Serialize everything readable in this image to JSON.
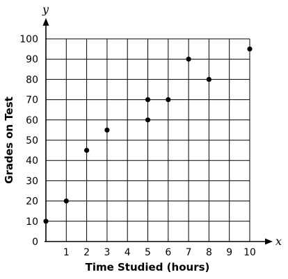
{
  "chart_data": {
    "type": "scatter",
    "xlabel": "Time Studied (hours)",
    "ylabel": "Grades on Test",
    "x_axis_var": "x",
    "y_axis_var": "y",
    "xlim": [
      0,
      10
    ],
    "ylim": [
      0,
      100
    ],
    "x_ticks": [
      "1",
      "2",
      "3",
      "4",
      "5",
      "6",
      "7",
      "8",
      "9",
      "10"
    ],
    "y_ticks": [
      "0",
      "10",
      "20",
      "30",
      "40",
      "50",
      "60",
      "70",
      "80",
      "90",
      "100"
    ],
    "grid": true,
    "points": [
      {
        "x": 0,
        "y": 10
      },
      {
        "x": 1,
        "y": 20
      },
      {
        "x": 2,
        "y": 45
      },
      {
        "x": 3,
        "y": 55
      },
      {
        "x": 5,
        "y": 70
      },
      {
        "x": 5,
        "y": 60
      },
      {
        "x": 6,
        "y": 70
      },
      {
        "x": 7,
        "y": 90
      },
      {
        "x": 8,
        "y": 80
      },
      {
        "x": 10,
        "y": 95
      }
    ],
    "colors": {
      "grid": "#000000",
      "points": "#000000"
    }
  }
}
